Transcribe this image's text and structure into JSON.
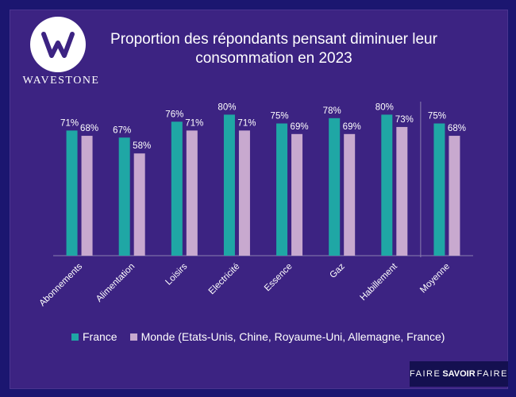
{
  "brand": {
    "name": "WAVESTONE",
    "footer_left": "FAIRE",
    "footer_mid": "SAVOIR",
    "footer_right": "FAIRE"
  },
  "colors": {
    "france": "#1fa7a5",
    "monde": "#c8a9cf",
    "background": "#3c2382",
    "frame": "#1b1670"
  },
  "chart_data": {
    "type": "bar",
    "title": "Proportion des répondants pensant diminuer leur consommation en 2023",
    "categories": [
      "Abonnements",
      "Alimentation",
      "Loisirs",
      "Electricité",
      "Essence",
      "Gaz",
      "Habillement",
      "Moyenne"
    ],
    "series": [
      {
        "name": "France",
        "values": [
          71,
          67,
          76,
          80,
          75,
          78,
          80,
          75
        ],
        "labels": [
          "71%",
          "67%",
          "76%",
          "80%",
          "75%",
          "78%",
          "80%",
          "75%"
        ]
      },
      {
        "name": "Monde (Etats-Unis, Chine, Royaume-Uni, Allemagne, France)",
        "values": [
          68,
          58,
          71,
          71,
          69,
          69,
          73,
          68
        ],
        "labels": [
          "68%",
          "58%",
          "71%",
          "71%",
          "69%",
          "69%",
          "73%",
          "68%"
        ]
      }
    ],
    "ylim": [
      0,
      100
    ],
    "xlabel": "",
    "ylabel": "",
    "grid": false,
    "legend_position": "bottom"
  }
}
